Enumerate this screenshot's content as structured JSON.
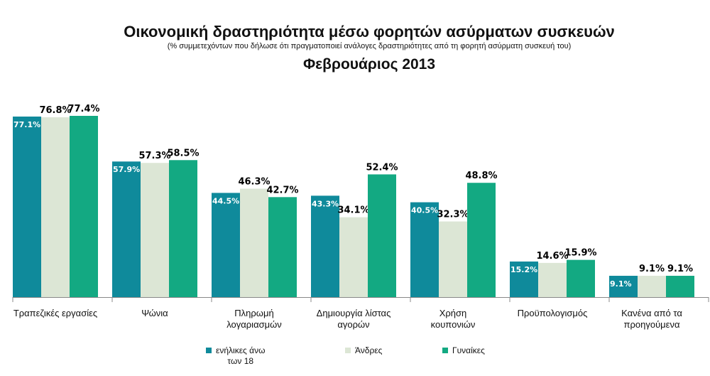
{
  "chart_data": {
    "type": "bar",
    "title": "Οικονομική δραστηριότητα μέσω φορητών ασύρματων συσκευών",
    "subtitle": "(% συμμετεχόντων που δήλωσε ότι πραγματοποιεί ανάλογες δραστηριότητες από τη φορητή ασύρματη συσκευή του)",
    "period": "Φεβρουάριος 2013",
    "xlabel": "",
    "ylabel": "",
    "ylim": [
      0,
      85
    ],
    "grid": false,
    "legend_position": "bottom",
    "categories": [
      [
        "Τραπεζικές εργασίες"
      ],
      [
        "Ψώνια"
      ],
      [
        "Πληρωμή",
        "λογαριασμών"
      ],
      [
        "Δημιουργία λίστας",
        "αγορών"
      ],
      [
        "Χρήση",
        "κουπονιών"
      ],
      [
        "Προϋπολογισμός"
      ],
      [
        "Κανένα από τα",
        "προηγούμενα"
      ]
    ],
    "series": [
      {
        "name": [
          "ενήλικες άνω",
          "των 18"
        ],
        "color": "#0f8a9b",
        "label_color": "#ffffff",
        "values": [
          77.1,
          57.9,
          44.5,
          43.3,
          40.5,
          15.2,
          9.1
        ],
        "labels": [
          "77.1%",
          "57.9%",
          "44.5%",
          "43.3%",
          "40.5%",
          "15.2%",
          "9.1%"
        ]
      },
      {
        "name": [
          "Άνδρες"
        ],
        "color": "#dce6d5",
        "label_color": "#000000",
        "values": [
          76.8,
          57.3,
          46.3,
          34.1,
          32.3,
          14.6,
          9.1
        ],
        "labels": [
          "76.8%",
          "57.3%",
          "46.3%",
          "34.1%",
          "32.3%",
          "14.6%",
          "9.1%"
        ]
      },
      {
        "name": [
          "Γυναίκες"
        ],
        "color": "#13a982",
        "label_color": "#000000",
        "values": [
          77.4,
          58.5,
          42.7,
          52.4,
          48.8,
          15.9,
          9.1
        ],
        "labels": [
          "77.4%",
          "58.5%",
          "42.7%",
          "52.4%",
          "48.8%",
          "15.9%",
          "9.1%"
        ]
      }
    ]
  }
}
